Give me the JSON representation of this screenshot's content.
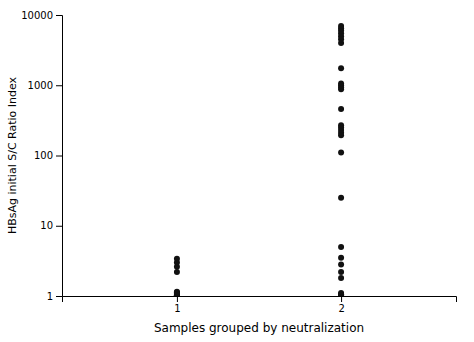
{
  "chart_data": {
    "type": "scatter",
    "xlabel": "Samples grouped by neutralization",
    "ylabel": "HBsAg initial S/C Ratio Index",
    "color": "#111111",
    "log": "y",
    "grid": false,
    "xlim": [
      0.3,
      2.7
    ],
    "xticks": [
      1,
      2
    ],
    "ylim": [
      1,
      10000
    ],
    "yticks": [
      1,
      10,
      100,
      1000,
      10000
    ],
    "series": [
      {
        "x": [
          1,
          1,
          1,
          1,
          1,
          1,
          1,
          1,
          1,
          1,
          1,
          1,
          1,
          1,
          1,
          1,
          1,
          1,
          1,
          1,
          1,
          1,
          1,
          1,
          1,
          1,
          1,
          1,
          1
        ],
        "values": [
          1.0,
          1.0,
          1.0,
          1.0,
          1.0,
          1.0,
          1.0,
          1.0,
          1.0,
          1.0,
          1.0,
          1.0,
          1.0,
          1.0,
          1.0,
          1.0,
          1.0,
          1.0,
          1.0,
          1.0,
          1.05,
          1.08,
          1.1,
          1.12,
          1.15,
          2.2,
          2.6,
          3.0,
          3.4
        ]
      },
      {
        "x": [
          2,
          2,
          2,
          2,
          2,
          2,
          2,
          2,
          2,
          2,
          2,
          2,
          2,
          2,
          2,
          2,
          2,
          2,
          2,
          2,
          2,
          2,
          2,
          2,
          2,
          2,
          2,
          2,
          2,
          2
        ],
        "values": [
          1.0,
          1.02,
          1.04,
          1.06,
          1.1,
          1.8,
          2.2,
          2.8,
          3.5,
          5.0,
          25.0,
          110.0,
          195.0,
          210.0,
          230.0,
          250.0,
          270.0,
          460.0,
          880.0,
          940.0,
          1000.0,
          1060.0,
          1750.0,
          4000.0,
          4500.0,
          5000.0,
          5500.0,
          6000.0,
          6500.0,
          7000.0
        ]
      }
    ]
  }
}
